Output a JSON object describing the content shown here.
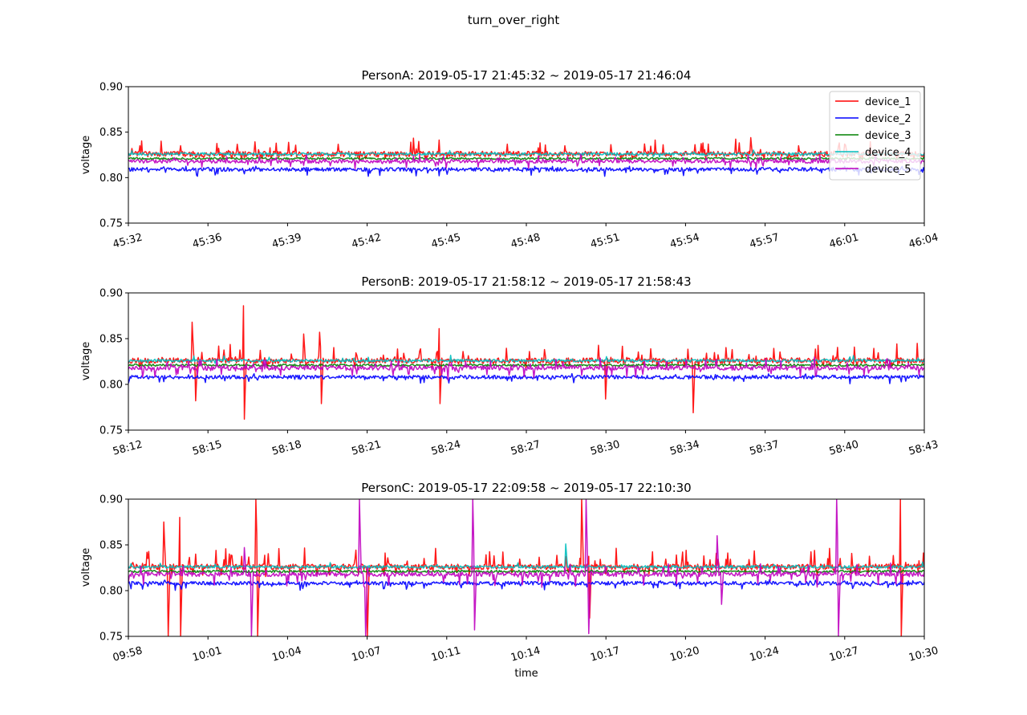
{
  "figure": {
    "suptitle": "turn_over_right"
  },
  "series_styles": [
    {
      "name": "device_1",
      "color": "#ff0000"
    },
    {
      "name": "device_2",
      "color": "#0000ff"
    },
    {
      "name": "device_3",
      "color": "#008000"
    },
    {
      "name": "device_4",
      "color": "#00bfbf"
    },
    {
      "name": "device_5",
      "color": "#bf00bf"
    }
  ],
  "chart_data": [
    {
      "type": "line",
      "title": "PersonA: 2019-05-17 21:45:32 ~ 2019-05-17 21:46:04",
      "xlabel": "",
      "ylabel": "voltage",
      "ylim": [
        0.75,
        0.9
      ],
      "yticks": [
        "0.75",
        "0.80",
        "0.85",
        "0.90"
      ],
      "xticks": [
        "45:32",
        "45:36",
        "45:39",
        "45:42",
        "45:45",
        "45:48",
        "45:51",
        "45:54",
        "45:57",
        "46:01",
        "46:04"
      ],
      "legend": {
        "location": "upper right",
        "entries": [
          "device_1",
          "device_2",
          "device_3",
          "device_4",
          "device_5"
        ]
      },
      "series": [
        {
          "name": "device_1",
          "base": 0.826,
          "noise": 0.003,
          "spike_rate": 0.08,
          "spike_up": 0.016,
          "spike_down": 0.004
        },
        {
          "name": "device_2",
          "base": 0.809,
          "noise": 0.002,
          "spike_rate": 0.07,
          "spike_up": 0.002,
          "spike_down": 0.007
        },
        {
          "name": "device_3",
          "base": 0.821,
          "noise": 0.0012,
          "spike_rate": 0.0,
          "spike_up": 0.0,
          "spike_down": 0.0
        },
        {
          "name": "device_4",
          "base": 0.826,
          "noise": 0.0015,
          "spike_rate": 0.02,
          "spike_up": 0.004,
          "spike_down": 0.002
        },
        {
          "name": "device_5",
          "base": 0.818,
          "noise": 0.002,
          "spike_rate": 0.06,
          "spike_up": 0.007,
          "spike_down": 0.008
        }
      ]
    },
    {
      "type": "line",
      "title": "PersonB: 2019-05-17 21:58:12 ~ 2019-05-17 21:58:43",
      "xlabel": "",
      "ylabel": "voltage",
      "ylim": [
        0.75,
        0.9
      ],
      "yticks": [
        "0.75",
        "0.80",
        "0.85",
        "0.90"
      ],
      "xticks": [
        "58:12",
        "58:15",
        "58:18",
        "58:21",
        "58:24",
        "58:27",
        "58:30",
        "58:34",
        "58:37",
        "58:40",
        "58:43"
      ],
      "series": [
        {
          "name": "device_1",
          "base": 0.826,
          "noise": 0.003,
          "spike_rate": 0.09,
          "spike_up": 0.018,
          "spike_down": 0.006,
          "events": [
            [
              0.08,
              0.868
            ],
            [
              0.084,
              0.782
            ],
            [
              0.145,
              0.886
            ],
            [
              0.146,
              0.762
            ],
            [
              0.22,
              0.855
            ],
            [
              0.24,
              0.857
            ],
            [
              0.243,
              0.779
            ],
            [
              0.39,
              0.861
            ],
            [
              0.392,
              0.779
            ],
            [
              0.6,
              0.784
            ],
            [
              0.71,
              0.769
            ]
          ]
        },
        {
          "name": "device_2",
          "base": 0.808,
          "noise": 0.002,
          "spike_rate": 0.07,
          "spike_up": 0.002,
          "spike_down": 0.006
        },
        {
          "name": "device_3",
          "base": 0.821,
          "noise": 0.0012,
          "spike_rate": 0.0,
          "spike_up": 0.0,
          "spike_down": 0.0
        },
        {
          "name": "device_4",
          "base": 0.826,
          "noise": 0.0015,
          "spike_rate": 0.02,
          "spike_up": 0.005,
          "spike_down": 0.002
        },
        {
          "name": "device_5",
          "base": 0.818,
          "noise": 0.0025,
          "spike_rate": 0.07,
          "spike_up": 0.01,
          "spike_down": 0.012
        }
      ]
    },
    {
      "type": "line",
      "title": "PersonC: 2019-05-17 22:09:58 ~ 2019-05-17 22:10:30",
      "xlabel": "time",
      "ylabel": "voltage",
      "ylim": [
        0.75,
        0.9
      ],
      "yticks": [
        "0.75",
        "0.80",
        "0.85",
        "0.90"
      ],
      "xticks": [
        "09:58",
        "10:01",
        "10:04",
        "10:07",
        "10:11",
        "10:14",
        "10:17",
        "10:20",
        "10:24",
        "10:27",
        "10:30"
      ],
      "series": [
        {
          "name": "device_1",
          "base": 0.826,
          "noise": 0.003,
          "spike_rate": 0.1,
          "spike_up": 0.02,
          "spike_down": 0.008,
          "events": [
            [
              0.045,
              0.875
            ],
            [
              0.05,
              0.75
            ],
            [
              0.065,
              0.88
            ],
            [
              0.066,
              0.75
            ],
            [
              0.16,
              0.9
            ],
            [
              0.162,
              0.75
            ],
            [
              0.3,
              0.88
            ],
            [
              0.3,
              0.75
            ],
            [
              0.57,
              0.9
            ],
            [
              0.58,
              0.77
            ],
            [
              0.97,
              0.9
            ],
            [
              0.971,
              0.75
            ]
          ]
        },
        {
          "name": "device_2",
          "base": 0.808,
          "noise": 0.002,
          "spike_rate": 0.07,
          "spike_up": 0.002,
          "spike_down": 0.006
        },
        {
          "name": "device_3",
          "base": 0.821,
          "noise": 0.0012,
          "spike_rate": 0.0,
          "spike_up": 0.0,
          "spike_down": 0.0
        },
        {
          "name": "device_4",
          "base": 0.826,
          "noise": 0.0015,
          "spike_rate": 0.02,
          "spike_up": 0.005,
          "spike_down": 0.002,
          "events": [
            [
              0.55,
              0.851
            ]
          ]
        },
        {
          "name": "device_5",
          "base": 0.818,
          "noise": 0.0025,
          "spike_rate": 0.07,
          "spike_up": 0.012,
          "spike_down": 0.014,
          "events": [
            [
              0.146,
              0.847
            ],
            [
              0.155,
              0.75
            ],
            [
              0.29,
              0.9
            ],
            [
              0.298,
              0.75
            ],
            [
              0.433,
              0.9
            ],
            [
              0.435,
              0.757
            ],
            [
              0.575,
              0.9
            ],
            [
              0.578,
              0.753
            ],
            [
              0.74,
              0.86
            ],
            [
              0.745,
              0.785
            ],
            [
              0.89,
              0.9
            ],
            [
              0.892,
              0.75
            ]
          ]
        }
      ]
    }
  ]
}
